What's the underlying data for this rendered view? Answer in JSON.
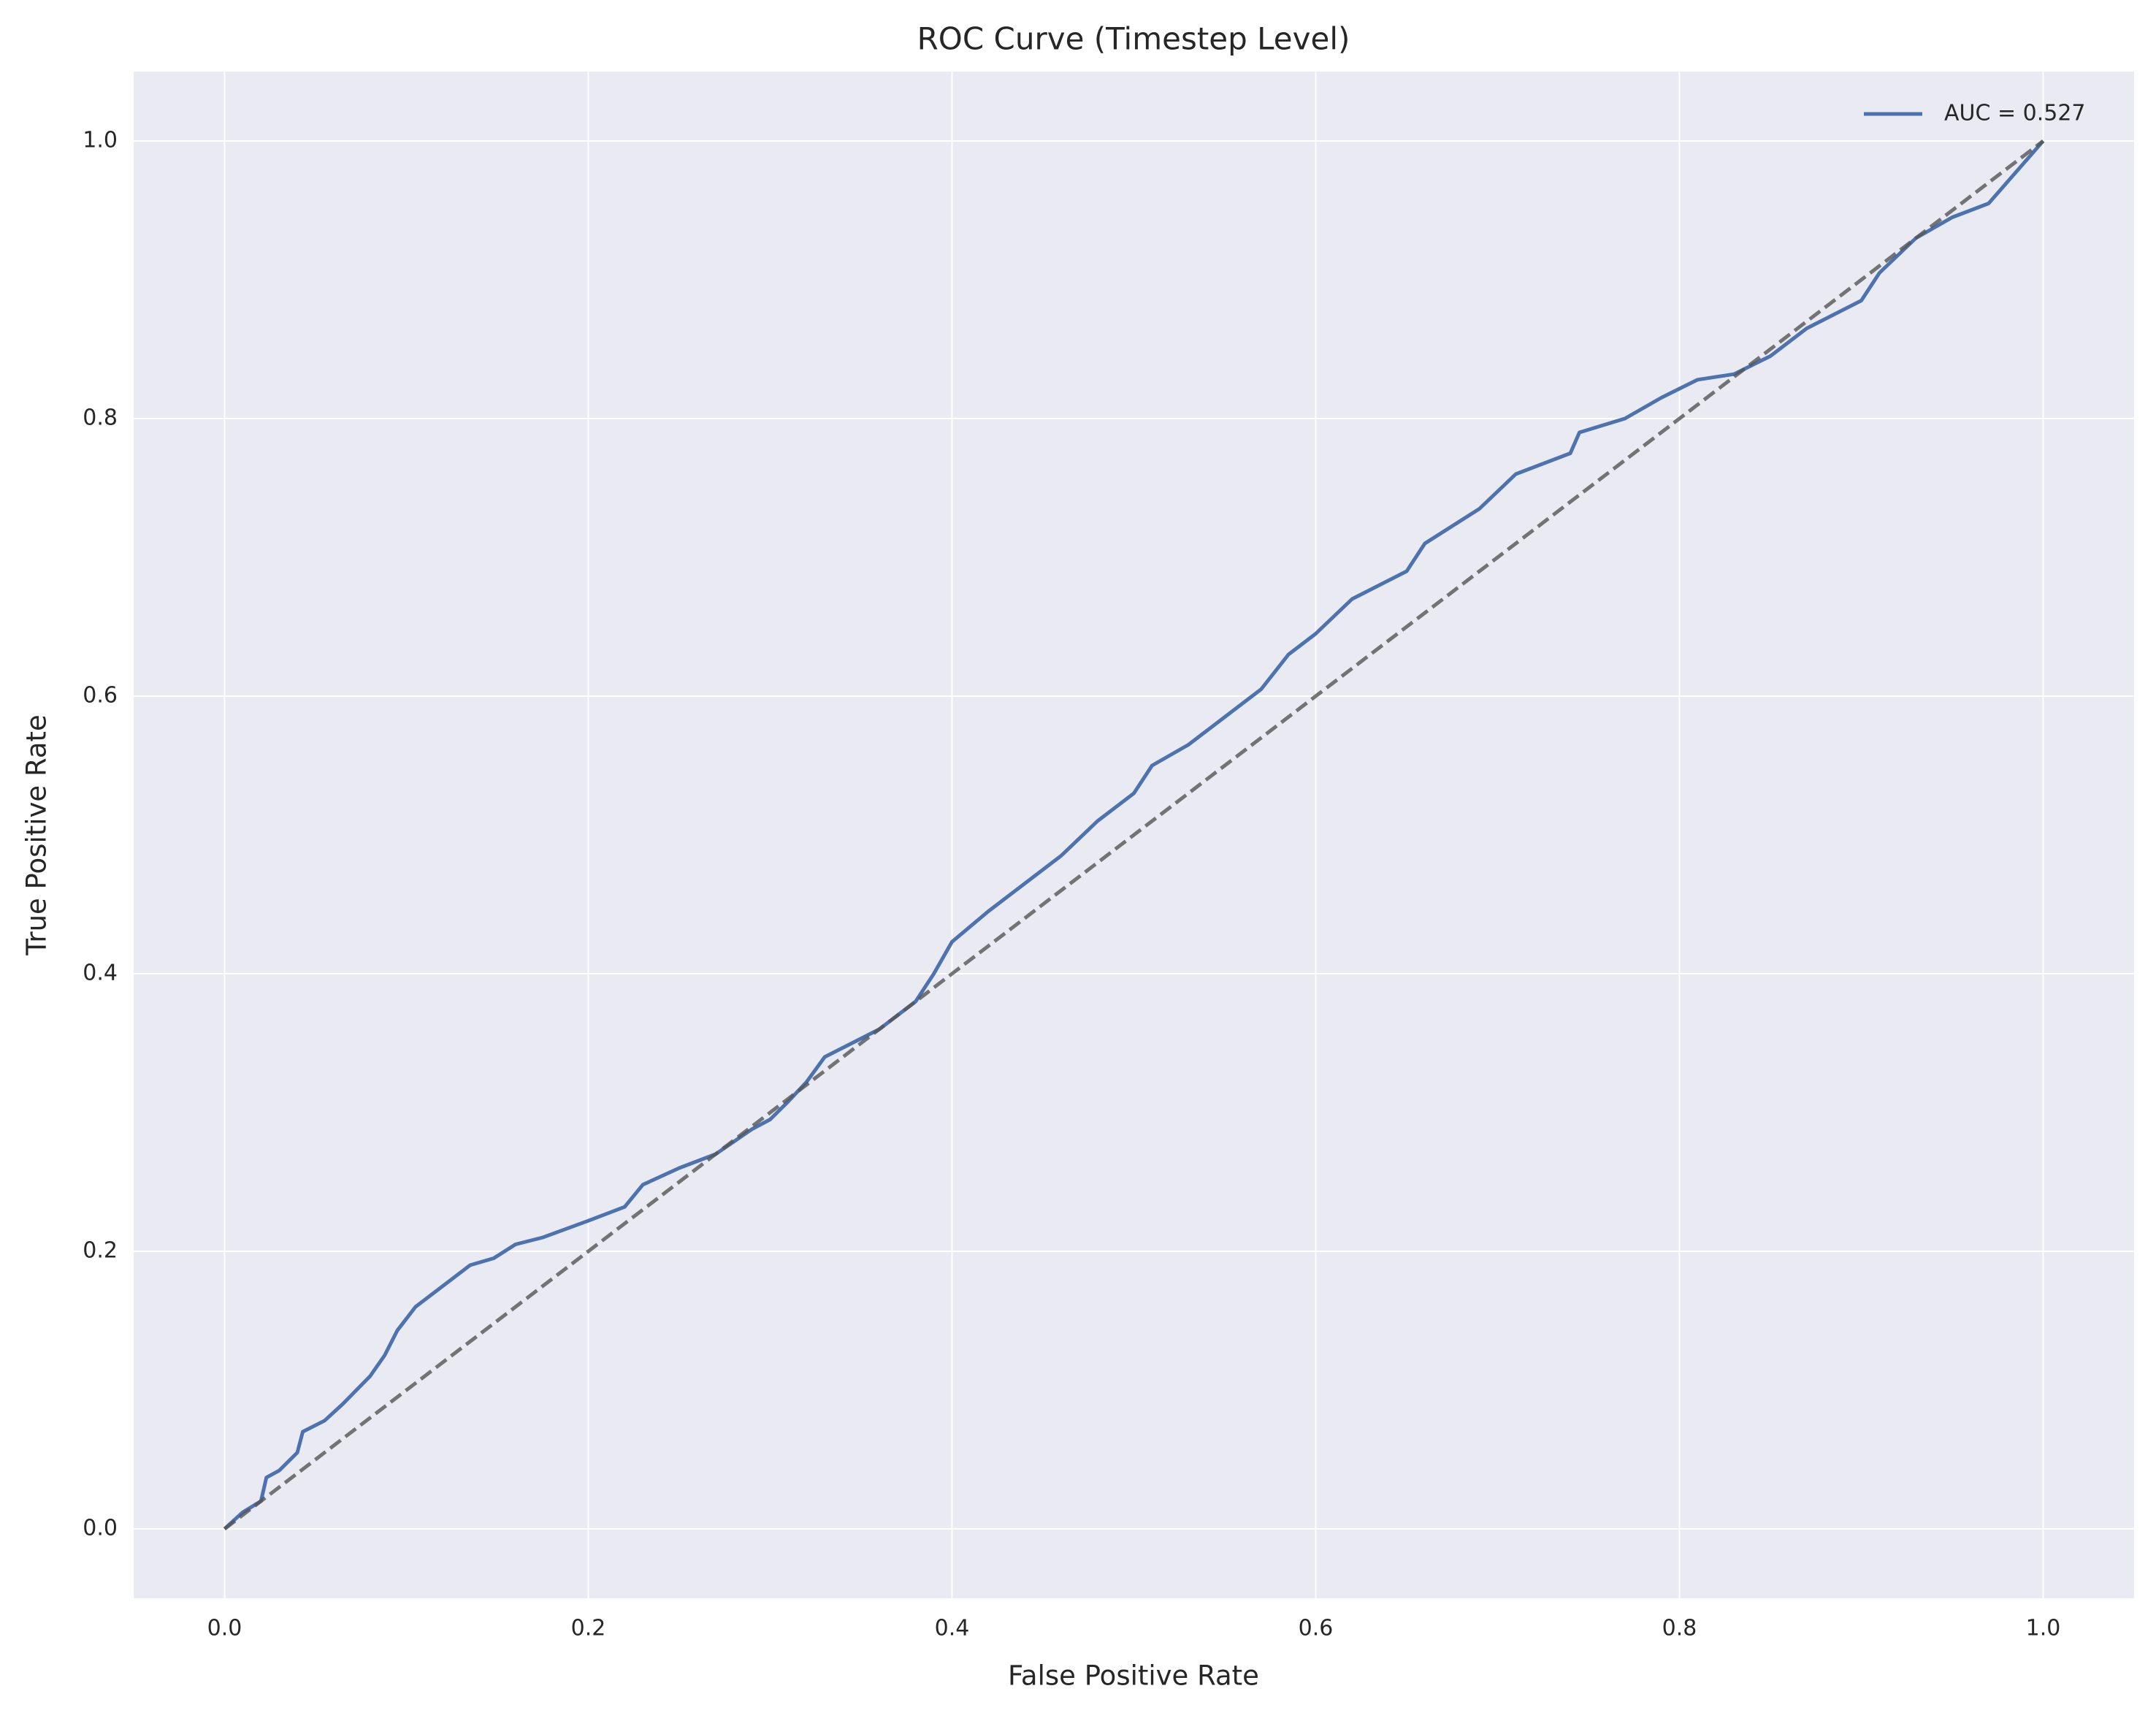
{
  "chart_data": {
    "type": "line",
    "title": "ROC Curve (Timestep Level)",
    "xlabel": "False Positive Rate",
    "ylabel": "True Positive Rate",
    "xlim": [
      -0.05,
      1.05
    ],
    "ylim": [
      -0.05,
      1.05
    ],
    "xticks": [
      {
        "value": 0,
        "label": "0.0"
      },
      {
        "value": 0.2,
        "label": "0.2"
      },
      {
        "value": 0.4,
        "label": "0.4"
      },
      {
        "value": 0.6,
        "label": "0.6"
      },
      {
        "value": 0.8,
        "label": "0.8"
      },
      {
        "value": 1,
        "label": "1.0"
      }
    ],
    "yticks": [
      {
        "value": 0,
        "label": "0.0"
      },
      {
        "value": 0.2,
        "label": "0.2"
      },
      {
        "value": 0.4,
        "label": "0.4"
      },
      {
        "value": 0.6,
        "label": "0.6"
      },
      {
        "value": 0.8,
        "label": "0.8"
      },
      {
        "value": 1,
        "label": "1.0"
      }
    ],
    "grid": true,
    "legend": "upper right",
    "series": [
      {
        "name": "AUC = 0.527",
        "color": "#4c72b0",
        "x": [
          0,
          0.01,
          0.02,
          0.023,
          0.03,
          0.04,
          0.043,
          0.055,
          0.065,
          0.08,
          0.088,
          0.095,
          0.105,
          0.12,
          0.135,
          0.148,
          0.16,
          0.175,
          0.2,
          0.22,
          0.23,
          0.25,
          0.27,
          0.29,
          0.3,
          0.31,
          0.32,
          0.33,
          0.345,
          0.36,
          0.38,
          0.39,
          0.4,
          0.42,
          0.44,
          0.46,
          0.48,
          0.5,
          0.51,
          0.53,
          0.55,
          0.57,
          0.585,
          0.6,
          0.62,
          0.65,
          0.66,
          0.69,
          0.71,
          0.74,
          0.745,
          0.77,
          0.79,
          0.81,
          0.83,
          0.85,
          0.87,
          0.9,
          0.91,
          0.93,
          0.95,
          0.97,
          0.98,
          0.99,
          1
        ],
        "y": [
          0,
          0.012,
          0.02,
          0.037,
          0.042,
          0.055,
          0.07,
          0.078,
          0.09,
          0.11,
          0.125,
          0.143,
          0.16,
          0.175,
          0.19,
          0.195,
          0.205,
          0.21,
          0.222,
          0.232,
          0.248,
          0.26,
          0.27,
          0.288,
          0.295,
          0.308,
          0.322,
          0.34,
          0.35,
          0.36,
          0.38,
          0.4,
          0.423,
          0.445,
          0.465,
          0.485,
          0.51,
          0.53,
          0.55,
          0.565,
          0.585,
          0.605,
          0.63,
          0.645,
          0.67,
          0.69,
          0.71,
          0.735,
          0.76,
          0.775,
          0.79,
          0.8,
          0.815,
          0.828,
          0.832,
          0.845,
          0.865,
          0.885,
          0.905,
          0.93,
          0.945,
          0.955,
          0.97,
          0.985,
          1
        ]
      }
    ],
    "reference_line": {
      "x": [
        0,
        1
      ],
      "y": [
        0,
        1
      ],
      "color": "#555555"
    }
  }
}
